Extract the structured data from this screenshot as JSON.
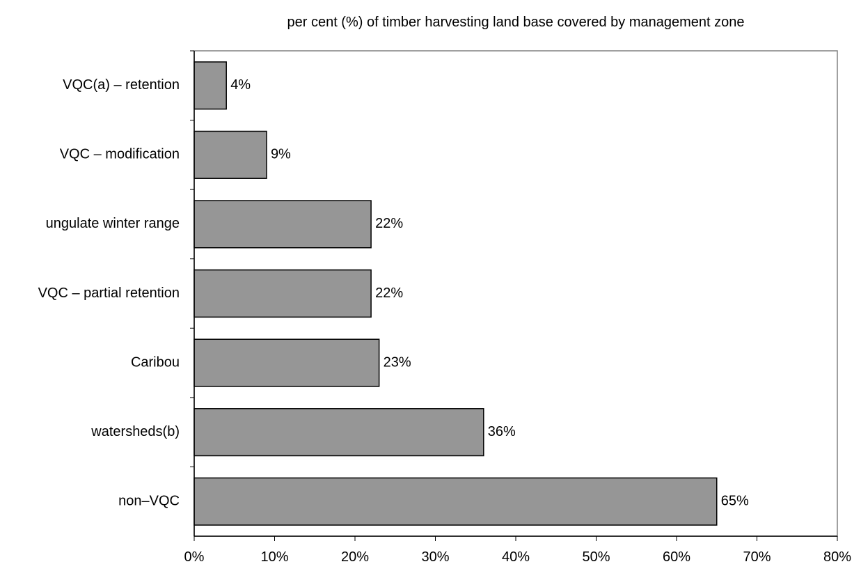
{
  "chart_data": {
    "type": "bar",
    "orientation": "horizontal",
    "title": "per cent (%) of timber harvesting land base covered by management zone",
    "xlabel": "",
    "ylabel": "",
    "xlim": [
      0,
      80
    ],
    "x_ticks": [
      "0%",
      "10%",
      "20%",
      "30%",
      "40%",
      "50%",
      "60%",
      "70%",
      "80%"
    ],
    "categories": [
      "VQC(a) – retention",
      "VQC – modification",
      "ungulate winter range",
      "VQC – partial retention",
      "Caribou",
      "watersheds(b)",
      "non–VQC"
    ],
    "values": [
      4,
      9,
      22,
      22,
      23,
      36,
      65
    ],
    "data_labels": [
      "4%",
      "9%",
      "22%",
      "22%",
      "23%",
      "36%",
      "65%"
    ],
    "bar_color": "#969696",
    "grid": false,
    "legend": "none"
  }
}
